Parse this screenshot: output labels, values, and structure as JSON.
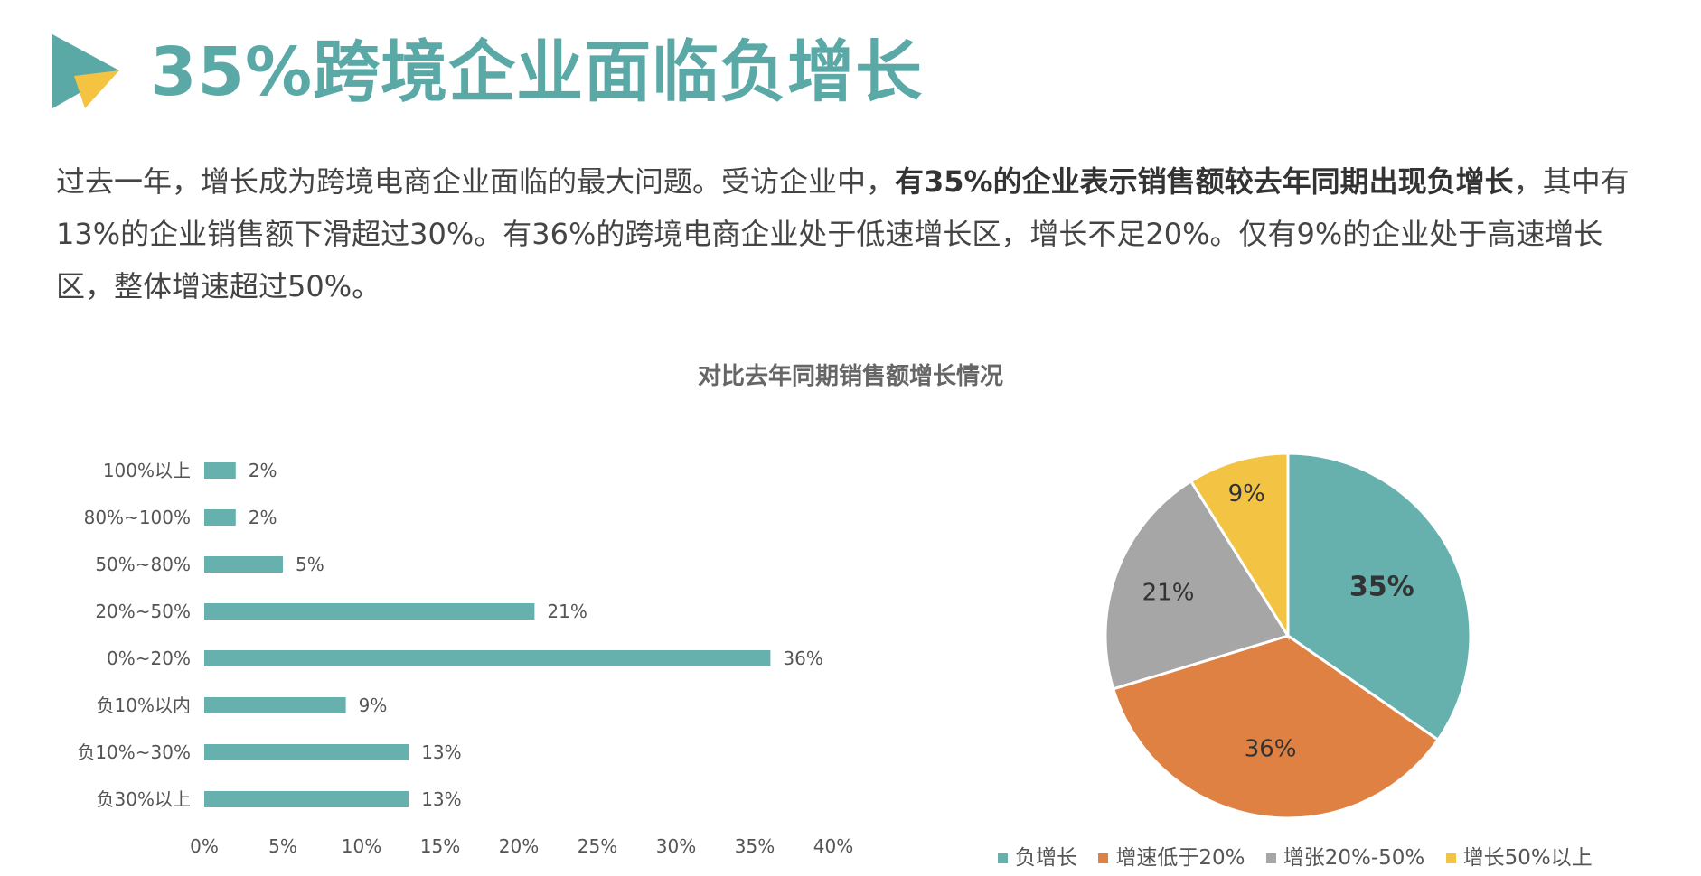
{
  "header": {
    "title": "35%跨境企业面临负增长",
    "logo_icon": "play-triangle-logo",
    "colors": {
      "teal": "#5aa9a6",
      "yellow": "#f5c342"
    }
  },
  "paragraph": {
    "part1": "过去一年，增长成为跨境电商企业面临的最大问题。受访企业中，",
    "bold": "有35%的企业表示销售额较去年同期出现负增长",
    "part2": "，其中有13%的企业销售额下滑超过30%。有36%的跨境电商企业处于低速增长区，增长不足20%。仅有9%的企业处于高速增长区，整体增速超过50%。"
  },
  "chart_data": [
    {
      "type": "bar",
      "orientation": "horizontal",
      "title": "对比去年同期销售额增长情况",
      "categories": [
        "100%以上",
        "80%~100%",
        "50%~80%",
        "20%~50%",
        "0%~20%",
        "负10%以内",
        "负10%~30%",
        "负30%以上"
      ],
      "values": [
        2,
        2,
        5,
        21,
        36,
        9,
        13,
        13
      ],
      "value_labels": [
        "2%",
        "2%",
        "5%",
        "21%",
        "36%",
        "9%",
        "13%",
        "13%"
      ],
      "xlim": [
        0,
        40
      ],
      "xticks": [
        "0%",
        "5%",
        "10%",
        "15%",
        "20%",
        "25%",
        "30%",
        "35%",
        "40%"
      ],
      "color": "#66b1ae",
      "grid": false
    },
    {
      "type": "pie",
      "labels": [
        "负增长",
        "增速低于20%",
        "增张20%-50%",
        "增长50%以上"
      ],
      "values": [
        35,
        36,
        21,
        9
      ],
      "value_labels": [
        "35%",
        "36%",
        "21%",
        "9%"
      ],
      "colors": [
        "#66b1ae",
        "#df8142",
        "#a6a6a6",
        "#f3c443"
      ],
      "legend_position": "bottom"
    }
  ]
}
